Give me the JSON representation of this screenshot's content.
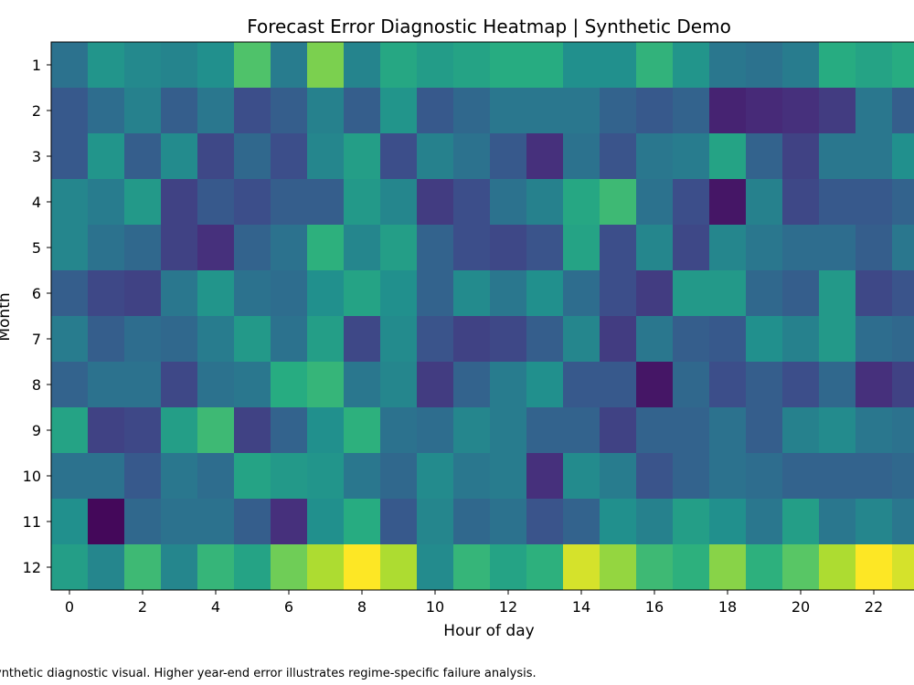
{
  "chart_data": {
    "type": "heatmap",
    "title": "Forecast Error Diagnostic Heatmap | Synthetic Demo",
    "xlabel": "Hour of day",
    "ylabel": "Month",
    "colormap": "viridis",
    "x_tick_labels": [
      "0",
      "2",
      "4",
      "6",
      "8",
      "10",
      "12",
      "14",
      "16",
      "18",
      "20",
      "22"
    ],
    "x_ticks": [
      0,
      2,
      4,
      6,
      8,
      10,
      12,
      14,
      16,
      18,
      20,
      22
    ],
    "y_categories": [
      "1",
      "2",
      "3",
      "4",
      "5",
      "6",
      "7",
      "8",
      "9",
      "10",
      "11",
      "12"
    ],
    "values": [
      [
        0.38,
        0.52,
        0.47,
        0.45,
        0.5,
        0.72,
        0.42,
        0.8,
        0.45,
        0.6,
        0.55,
        0.58,
        0.62,
        0.62,
        0.5,
        0.5,
        0.65,
        0.52,
        0.4,
        0.38,
        0.42,
        0.62,
        0.58,
        0.62
      ],
      [
        0.28,
        0.36,
        0.44,
        0.3,
        0.4,
        0.24,
        0.3,
        0.44,
        0.3,
        0.52,
        0.28,
        0.34,
        0.4,
        0.4,
        0.4,
        0.32,
        0.28,
        0.32,
        0.1,
        0.12,
        0.14,
        0.18,
        0.4,
        0.3
      ],
      [
        0.28,
        0.52,
        0.3,
        0.48,
        0.22,
        0.34,
        0.24,
        0.46,
        0.56,
        0.24,
        0.44,
        0.38,
        0.28,
        0.14,
        0.38,
        0.26,
        0.4,
        0.42,
        0.58,
        0.32,
        0.2,
        0.4,
        0.4,
        0.5
      ],
      [
        0.46,
        0.42,
        0.54,
        0.2,
        0.28,
        0.24,
        0.3,
        0.3,
        0.54,
        0.46,
        0.18,
        0.24,
        0.38,
        0.44,
        0.6,
        0.68,
        0.38,
        0.24,
        0.06,
        0.44,
        0.22,
        0.28,
        0.28,
        0.32
      ],
      [
        0.46,
        0.38,
        0.34,
        0.2,
        0.14,
        0.32,
        0.38,
        0.64,
        0.46,
        0.56,
        0.32,
        0.24,
        0.22,
        0.26,
        0.58,
        0.24,
        0.46,
        0.22,
        0.46,
        0.4,
        0.36,
        0.36,
        0.3,
        0.4
      ],
      [
        0.3,
        0.22,
        0.2,
        0.4,
        0.52,
        0.38,
        0.36,
        0.5,
        0.58,
        0.5,
        0.32,
        0.48,
        0.4,
        0.5,
        0.36,
        0.24,
        0.18,
        0.54,
        0.54,
        0.34,
        0.3,
        0.54,
        0.22,
        0.26
      ],
      [
        0.42,
        0.3,
        0.36,
        0.34,
        0.42,
        0.54,
        0.38,
        0.56,
        0.22,
        0.48,
        0.26,
        0.2,
        0.22,
        0.3,
        0.46,
        0.18,
        0.4,
        0.3,
        0.28,
        0.5,
        0.44,
        0.54,
        0.36,
        0.34
      ],
      [
        0.32,
        0.38,
        0.38,
        0.22,
        0.38,
        0.4,
        0.62,
        0.66,
        0.4,
        0.46,
        0.18,
        0.32,
        0.42,
        0.5,
        0.28,
        0.28,
        0.06,
        0.34,
        0.24,
        0.3,
        0.24,
        0.34,
        0.14,
        0.2
      ],
      [
        0.58,
        0.2,
        0.22,
        0.56,
        0.68,
        0.2,
        0.32,
        0.5,
        0.64,
        0.38,
        0.36,
        0.46,
        0.42,
        0.32,
        0.32,
        0.2,
        0.32,
        0.32,
        0.38,
        0.3,
        0.44,
        0.48,
        0.4,
        0.38
      ],
      [
        0.38,
        0.38,
        0.28,
        0.4,
        0.36,
        0.58,
        0.54,
        0.52,
        0.4,
        0.34,
        0.48,
        0.4,
        0.42,
        0.14,
        0.48,
        0.42,
        0.26,
        0.32,
        0.38,
        0.36,
        0.32,
        0.32,
        0.32,
        0.34
      ],
      [
        0.5,
        0.02,
        0.34,
        0.38,
        0.38,
        0.3,
        0.14,
        0.5,
        0.62,
        0.28,
        0.46,
        0.34,
        0.38,
        0.26,
        0.32,
        0.5,
        0.44,
        0.56,
        0.5,
        0.4,
        0.56,
        0.4,
        0.46,
        0.4
      ],
      [
        0.56,
        0.46,
        0.68,
        0.46,
        0.66,
        0.58,
        0.78,
        0.88,
        1.0,
        0.88,
        0.48,
        0.66,
        0.58,
        0.64,
        0.94,
        0.84,
        0.68,
        0.64,
        0.82,
        0.64,
        0.74,
        0.88,
        1.0,
        0.94
      ]
    ],
    "vrange": [
      0,
      1
    ],
    "footnote": "ynthetic diagnostic visual. Higher year-end error illustrates regime-specific failure analysis."
  }
}
